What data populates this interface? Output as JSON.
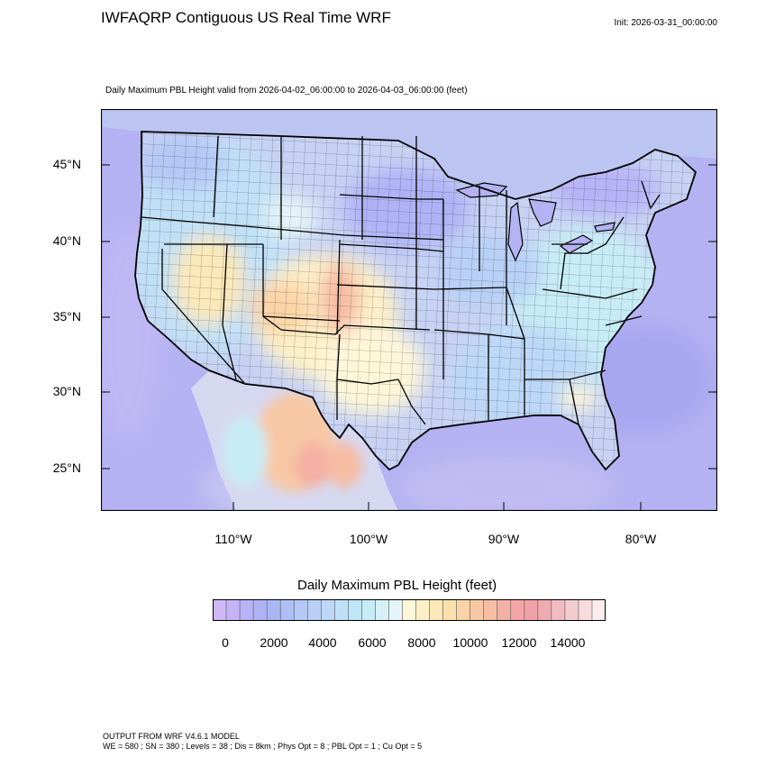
{
  "header": {
    "title": "IWFAQRP Contiguous US Real Time WRF",
    "init": "Init: 2026-03-31_00:00:00",
    "subtitle": "Daily Maximum PBL Height valid from 2026-04-02_06:00:00 to 2026-04-03_06:00:00   (feet)"
  },
  "map": {
    "lat_labels": [
      "45°N",
      "40°N",
      "35°N",
      "30°N",
      "25°N"
    ],
    "lon_labels": [
      "110°W",
      "100°W",
      "90°W",
      "80°W"
    ],
    "field_name": "Daily Maximum PBL Height",
    "colors": {
      "ocean": "#b4b2f2",
      "land_low": "#c7d2f3",
      "border": "#000000"
    }
  },
  "colorbar": {
    "title": "Daily Maximum PBL Height  (feet)",
    "tick_labels": [
      "0",
      "2000",
      "4000",
      "6000",
      "8000",
      "10000",
      "12000",
      "14000"
    ],
    "colors": [
      "#cfb8f5",
      "#c4b4f6",
      "#b8b2f6",
      "#afb3f6",
      "#a9b8f5",
      "#aebff5",
      "#b4c8f5",
      "#b8d0f6",
      "#bcd8f6",
      "#c0e0f6",
      "#bfe6f6",
      "#c8ecf6",
      "#d6f0f6",
      "#e4f4f8",
      "#fdf6d8",
      "#fdf0c8",
      "#fce8b8",
      "#fbe0ac",
      "#fad4a6",
      "#f8c8a4",
      "#f6bca4",
      "#f4b0a4",
      "#f2a6a8",
      "#f0a2a8",
      "#eeacb0",
      "#f0bcc0",
      "#f4cccf",
      "#f8dcdc",
      "#fcecec"
    ]
  },
  "footer": {
    "line1": "OUTPUT FROM WRF V4.6.1 MODEL",
    "line2": "WE = 580 ; SN = 380 ; Levels = 38 ; Dis = 8km ; Phys Opt = 8 ; PBL Opt = 1 ; Cu Opt = 5"
  }
}
